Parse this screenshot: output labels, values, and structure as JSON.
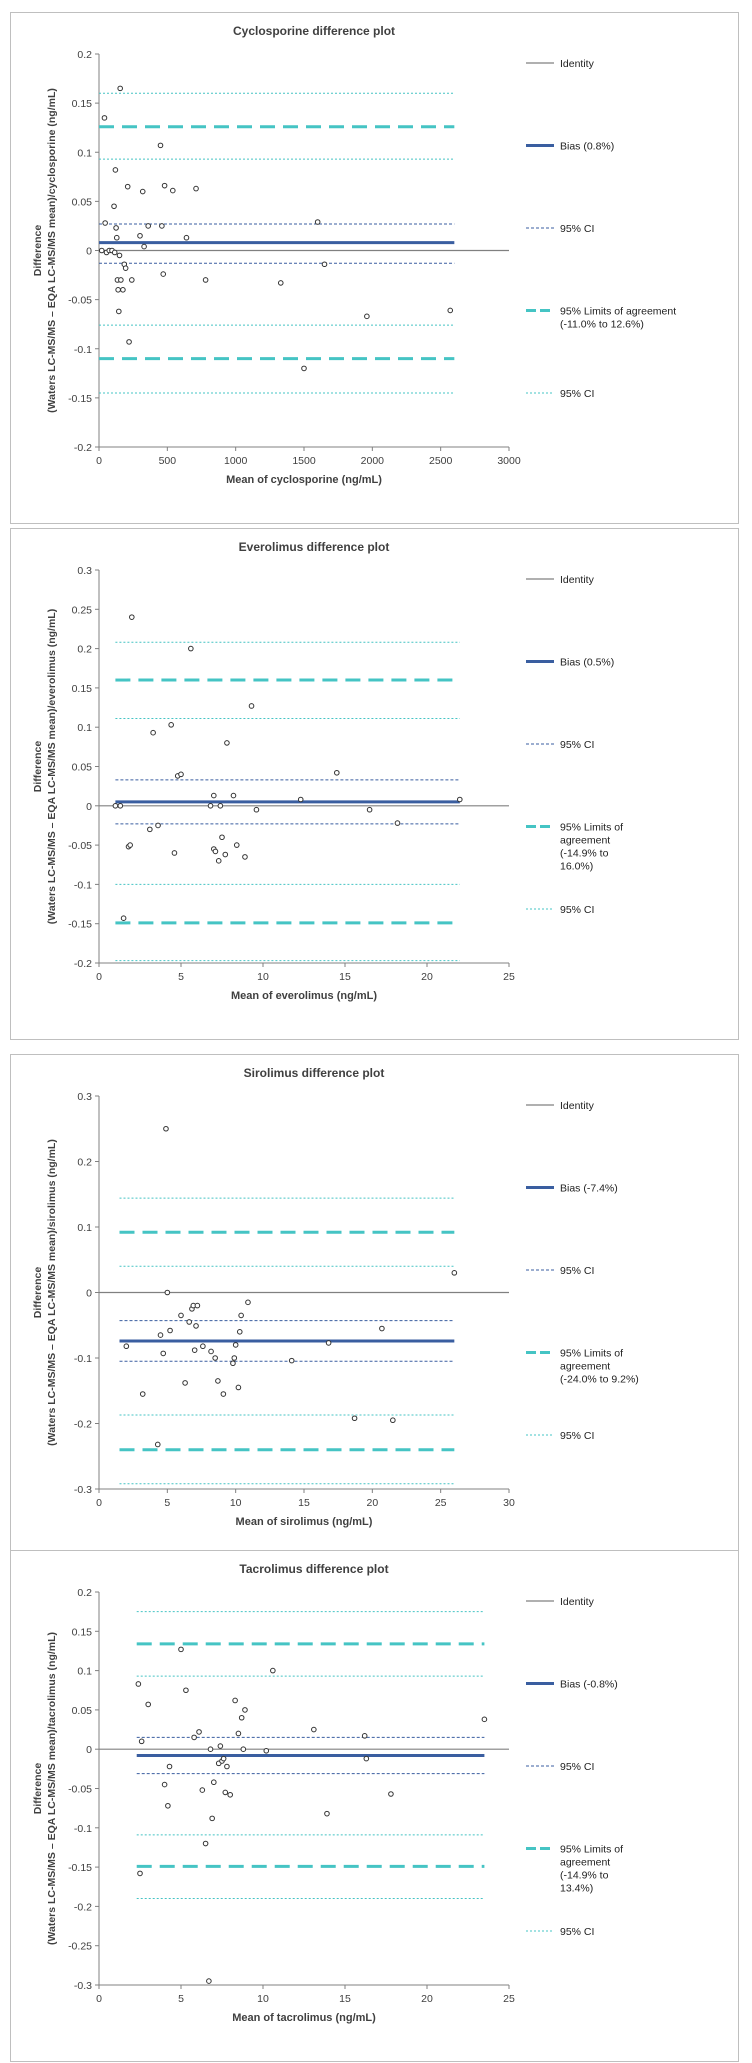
{
  "colors": {
    "identity": "#808080",
    "bias": "#3a5ea0",
    "ci_bias": "#3a5ea0",
    "loa": "#45c4c4",
    "ci_loa": "#45c4c4",
    "point_stroke": "#333333",
    "axis": "#808080"
  },
  "chart_data": [
    {
      "type": "scatter",
      "title": "Cyclosporine difference plot",
      "xlabel": "Mean of cyclosporine (ng/mL)",
      "ylabel_line1": "Difference",
      "ylabel_line2": "(Waters LC-MS/MS – EQA LC-MS/MS mean)/cyclosporine (ng/mL)",
      "xlim": [
        0,
        3000
      ],
      "ylim": [
        -0.2,
        0.2
      ],
      "xticks": [
        "0",
        "500",
        "1000",
        "1500",
        "2000",
        "2500",
        "3000"
      ],
      "yticks": [
        "-0.2",
        "-0.15",
        "-0.1",
        "-0.05",
        "0",
        "0.05",
        "0.1",
        "0.15",
        "0.2"
      ],
      "line_x": [
        0,
        2600
      ],
      "lines": {
        "identity": 0,
        "bias": 0.008,
        "bias_ci": [
          0.027,
          -0.013
        ],
        "loa": [
          0.126,
          -0.11
        ],
        "loa_ci": [
          0.16,
          0.093,
          -0.076,
          -0.145
        ]
      },
      "legend": [
        {
          "key": "identity",
          "text": [
            "Identity"
          ]
        },
        {
          "key": "bias",
          "text": [
            "Bias (0.8%)"
          ]
        },
        {
          "key": "ci_bias",
          "text": [
            "95% CI"
          ]
        },
        {
          "key": "loa",
          "text": [
            "95% Limits of agreement",
            "(-11.0% to 12.6%)"
          ]
        },
        {
          "key": "ci_loa",
          "text": [
            "95% CI"
          ]
        }
      ],
      "points": [
        [
          20,
          0
        ],
        [
          40,
          0.135
        ],
        [
          45,
          0.028
        ],
        [
          55,
          -0.002
        ],
        [
          75,
          0
        ],
        [
          95,
          0
        ],
        [
          110,
          0.045
        ],
        [
          115,
          -0.002
        ],
        [
          120,
          0.082
        ],
        [
          125,
          0.023
        ],
        [
          130,
          0.013
        ],
        [
          135,
          -0.03
        ],
        [
          140,
          -0.04
        ],
        [
          145,
          -0.062
        ],
        [
          150,
          -0.005
        ],
        [
          155,
          0.165
        ],
        [
          160,
          -0.03
        ],
        [
          175,
          -0.04
        ],
        [
          185,
          -0.014
        ],
        [
          195,
          -0.018
        ],
        [
          210,
          0.065
        ],
        [
          220,
          -0.093
        ],
        [
          240,
          -0.03
        ],
        [
          300,
          0.015
        ],
        [
          320,
          0.06
        ],
        [
          330,
          0.004
        ],
        [
          360,
          0.025
        ],
        [
          450,
          0.107
        ],
        [
          460,
          0.025
        ],
        [
          470,
          -0.024
        ],
        [
          480,
          0.066
        ],
        [
          540,
          0.061
        ],
        [
          640,
          0.013
        ],
        [
          710,
          0.063
        ],
        [
          780,
          -0.03
        ],
        [
          1330,
          -0.033
        ],
        [
          1600,
          0.029
        ],
        [
          1650,
          -0.014
        ],
        [
          1960,
          -0.067
        ],
        [
          2570,
          -0.061
        ],
        [
          1500,
          -0.12
        ]
      ]
    },
    {
      "type": "scatter",
      "title": "Everolimus difference plot",
      "xlabel": "Mean of everolimus (ng/mL)",
      "ylabel_line1": "Difference",
      "ylabel_line2": "(Waters LC-MS/MS – EQA LC-MS/MS mean)/everolimus (ng/mL)",
      "xlim": [
        0,
        25
      ],
      "ylim": [
        -0.2,
        0.3
      ],
      "xticks": [
        "0",
        "5",
        "10",
        "15",
        "20",
        "25"
      ],
      "yticks": [
        "-0.2",
        "-0.15",
        "-0.1",
        "-0.05",
        "0",
        "0.05",
        "0.1",
        "0.15",
        "0.2",
        "0.25",
        "0.3"
      ],
      "line_x": [
        1.0,
        22.0
      ],
      "lines": {
        "identity": 0,
        "bias": 0.005,
        "bias_ci": [
          0.033,
          -0.023
        ],
        "loa": [
          0.16,
          -0.149
        ],
        "loa_ci": [
          0.208,
          0.111,
          -0.1,
          -0.197
        ]
      },
      "legend": [
        {
          "key": "identity",
          "text": [
            "Identity"
          ]
        },
        {
          "key": "bias",
          "text": [
            "Bias (0.5%)"
          ]
        },
        {
          "key": "ci_bias",
          "text": [
            "95% CI"
          ]
        },
        {
          "key": "loa",
          "text": [
            "95% Limits of",
            "agreement",
            "(-14.9% to",
            "16.0%)"
          ]
        },
        {
          "key": "ci_loa",
          "text": [
            "95% CI"
          ]
        }
      ],
      "points": [
        [
          1.0,
          0
        ],
        [
          1.3,
          0
        ],
        [
          1.5,
          -0.143
        ],
        [
          1.8,
          -0.052
        ],
        [
          1.9,
          -0.05
        ],
        [
          2.0,
          0.24
        ],
        [
          3.1,
          -0.03
        ],
        [
          3.3,
          0.093
        ],
        [
          3.6,
          -0.025
        ],
        [
          4.4,
          0.103
        ],
        [
          4.6,
          -0.06
        ],
        [
          4.8,
          0.038
        ],
        [
          5.0,
          0.04
        ],
        [
          5.6,
          0.2
        ],
        [
          6.8,
          0
        ],
        [
          7.0,
          0.013
        ],
        [
          7.0,
          -0.055
        ],
        [
          7.1,
          -0.058
        ],
        [
          7.3,
          -0.07
        ],
        [
          7.4,
          0
        ],
        [
          7.5,
          -0.04
        ],
        [
          7.7,
          -0.062
        ],
        [
          7.8,
          0.08
        ],
        [
          8.2,
          0.013
        ],
        [
          8.4,
          -0.05
        ],
        [
          8.9,
          -0.065
        ],
        [
          9.3,
          0.127
        ],
        [
          9.6,
          -0.005
        ],
        [
          12.3,
          0.008
        ],
        [
          14.5,
          0.042
        ],
        [
          16.5,
          -0.005
        ],
        [
          18.2,
          -0.022
        ],
        [
          22.0,
          0.008
        ]
      ]
    },
    {
      "type": "scatter",
      "title": "Sirolimus difference plot",
      "xlabel": "Mean of sirolimus (ng/mL)",
      "ylabel_line1": "Difference",
      "ylabel_line2": "(Waters LC-MS/MS – EQA LC-MS/MS mean)/sirolimus (ng/mL)",
      "xlim": [
        0,
        30
      ],
      "ylim": [
        -0.3,
        0.3
      ],
      "xticks": [
        "0",
        "5",
        "10",
        "15",
        "20",
        "25",
        "30"
      ],
      "yticks": [
        "-0.3",
        "-0.2",
        "-0.1",
        "0",
        "0.1",
        "0.2",
        "0.3"
      ],
      "line_x": [
        1.5,
        26.0
      ],
      "lines": {
        "identity": 0,
        "bias": -0.074,
        "bias_ci": [
          -0.043,
          -0.105
        ],
        "loa": [
          0.092,
          -0.24
        ],
        "loa_ci": [
          0.144,
          0.04,
          -0.187,
          -0.292
        ]
      },
      "legend": [
        {
          "key": "identity",
          "text": [
            "Identity"
          ]
        },
        {
          "key": "bias",
          "text": [
            "Bias (-7.4%)"
          ]
        },
        {
          "key": "ci_bias",
          "text": [
            "95% CI"
          ]
        },
        {
          "key": "loa",
          "text": [
            "95% Limits of",
            "agreement",
            "(-24.0% to 9.2%)"
          ]
        },
        {
          "key": "ci_loa",
          "text": [
            "95% CI"
          ]
        }
      ],
      "points": [
        [
          2.0,
          -0.082
        ],
        [
          3.2,
          -0.155
        ],
        [
          4.3,
          -0.232
        ],
        [
          4.5,
          -0.065
        ],
        [
          4.7,
          -0.093
        ],
        [
          4.9,
          0.25
        ],
        [
          5.0,
          0
        ],
        [
          5.2,
          -0.058
        ],
        [
          6.0,
          -0.035
        ],
        [
          6.3,
          -0.138
        ],
        [
          6.6,
          -0.045
        ],
        [
          6.8,
          -0.025
        ],
        [
          6.9,
          -0.02
        ],
        [
          7.0,
          -0.088
        ],
        [
          7.1,
          -0.051
        ],
        [
          7.2,
          -0.02
        ],
        [
          7.6,
          -0.082
        ],
        [
          8.2,
          -0.09
        ],
        [
          8.5,
          -0.1
        ],
        [
          8.7,
          -0.135
        ],
        [
          9.1,
          -0.155
        ],
        [
          9.8,
          -0.108
        ],
        [
          9.9,
          -0.1
        ],
        [
          10.0,
          -0.08
        ],
        [
          10.2,
          -0.145
        ],
        [
          10.3,
          -0.06
        ],
        [
          10.4,
          -0.035
        ],
        [
          10.9,
          -0.015
        ],
        [
          14.1,
          -0.104
        ],
        [
          16.8,
          -0.077
        ],
        [
          18.7,
          -0.192
        ],
        [
          20.7,
          -0.055
        ],
        [
          21.5,
          -0.195
        ],
        [
          26.0,
          0.03
        ]
      ]
    },
    {
      "type": "scatter",
      "title": "Tacrolimus difference plot",
      "xlabel": "Mean of tacrolimus (ng/mL)",
      "ylabel_line1": "Difference",
      "ylabel_line2": "(Waters LC-MS/MS – EQA LC-MS/MS mean)/tacrolimus (ng/mL)",
      "xlim": [
        0,
        25
      ],
      "ylim": [
        -0.3,
        0.2
      ],
      "xticks": [
        "0",
        "5",
        "10",
        "15",
        "20",
        "25"
      ],
      "yticks": [
        "-0.3",
        "-0.25",
        "-0.2",
        "-0.15",
        "-0.1",
        "-0.05",
        "0",
        "0.05",
        "0.1",
        "0.15",
        "0.2"
      ],
      "line_x": [
        2.3,
        23.5
      ],
      "lines": {
        "identity": 0,
        "bias": -0.008,
        "bias_ci": [
          0.015,
          -0.031
        ],
        "loa": [
          0.134,
          -0.149
        ],
        "loa_ci": [
          0.175,
          0.093,
          -0.109,
          -0.19
        ]
      },
      "legend": [
        {
          "key": "identity",
          "text": [
            "Identity"
          ]
        },
        {
          "key": "bias",
          "text": [
            "Bias (-0.8%)"
          ]
        },
        {
          "key": "ci_bias",
          "text": [
            "95% CI"
          ]
        },
        {
          "key": "loa",
          "text": [
            "95% Limits of",
            "agreement",
            "(-14.9% to",
            "13.4%)"
          ]
        },
        {
          "key": "ci_loa",
          "text": [
            "95% CI"
          ]
        }
      ],
      "points": [
        [
          2.4,
          0.083
        ],
        [
          2.5,
          -0.158
        ],
        [
          2.6,
          0.01
        ],
        [
          3.0,
          0.057
        ],
        [
          4.0,
          -0.045
        ],
        [
          4.2,
          -0.072
        ],
        [
          4.3,
          -0.022
        ],
        [
          5.0,
          0.127
        ],
        [
          5.3,
          0.075
        ],
        [
          5.8,
          0.015
        ],
        [
          6.1,
          0.022
        ],
        [
          6.3,
          -0.052
        ],
        [
          6.5,
          -0.12
        ],
        [
          6.7,
          -0.295
        ],
        [
          6.8,
          0
        ],
        [
          6.9,
          -0.088
        ],
        [
          7.0,
          -0.042
        ],
        [
          7.3,
          -0.018
        ],
        [
          7.4,
          0.004
        ],
        [
          7.5,
          -0.015
        ],
        [
          7.6,
          -0.012
        ],
        [
          7.7,
          -0.055
        ],
        [
          7.8,
          -0.022
        ],
        [
          8.0,
          -0.058
        ],
        [
          8.3,
          0.062
        ],
        [
          8.5,
          0.02
        ],
        [
          8.7,
          0.04
        ],
        [
          8.8,
          0
        ],
        [
          8.9,
          0.05
        ],
        [
          10.2,
          -0.002
        ],
        [
          10.6,
          0.1
        ],
        [
          13.1,
          0.025
        ],
        [
          13.9,
          -0.082
        ],
        [
          16.2,
          0.017
        ],
        [
          16.3,
          -0.012
        ],
        [
          17.8,
          -0.057
        ],
        [
          23.5,
          0.038
        ]
      ]
    }
  ]
}
